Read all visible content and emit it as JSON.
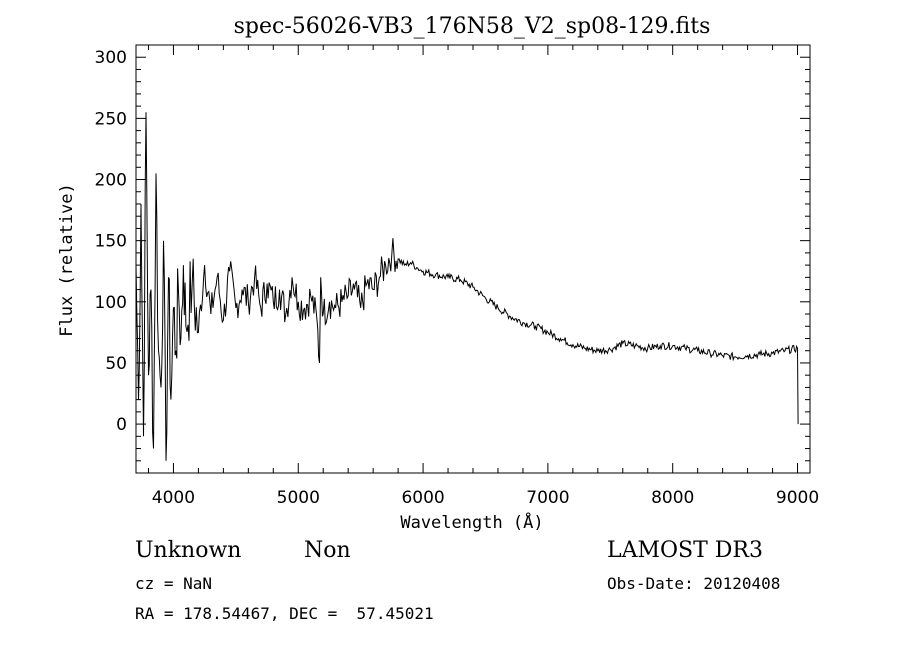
{
  "chart_data": {
    "type": "line",
    "title": "spec-56026-VB3_176N58_V2_sp08-129.fits",
    "xlabel": "Wavelength (Å)",
    "ylabel": "Flux (relative)",
    "xlim": [
      3700,
      9100
    ],
    "ylim": [
      -40,
      310
    ],
    "xticks": [
      "4000",
      "5000",
      "6000",
      "7000",
      "8000",
      "9000"
    ],
    "yticks": [
      "0",
      "50",
      "100",
      "150",
      "200",
      "250",
      "300"
    ],
    "grid": false,
    "series": [
      {
        "x": [
          3700,
          3720,
          3740,
          3760,
          3780,
          3800,
          3820,
          3840,
          3860,
          3880,
          3900,
          3920,
          3940,
          3960,
          3980,
          4000,
          4020,
          4040,
          4060,
          4080,
          4100,
          4150,
          4200,
          4250,
          4300,
          4350,
          4400,
          4450,
          4500,
          4550,
          4600,
          4650,
          4700,
          4750,
          4800,
          4850,
          4900,
          4950,
          5000,
          5050,
          5100,
          5150,
          5170,
          5180,
          5200,
          5250,
          5300,
          5350,
          5400,
          5450,
          5500,
          5550,
          5600,
          5650,
          5700,
          5750,
          5800,
          5850,
          5900,
          5950,
          6000,
          6100,
          6200,
          6300,
          6400,
          6500,
          6600,
          6700,
          6800,
          6900,
          7000,
          7100,
          7200,
          7300,
          7400,
          7500,
          7600,
          7700,
          7800,
          7900,
          8000,
          8100,
          8200,
          8300,
          8400,
          8500,
          8600,
          8700,
          8800,
          8900,
          9000,
          9005
        ],
        "values": [
          130,
          20,
          180,
          -10,
          255,
          40,
          110,
          -20,
          205,
          60,
          30,
          150,
          -30,
          120,
          20,
          95,
          60,
          110,
          70,
          130,
          80,
          115,
          75,
          130,
          90,
          120,
          85,
          125,
          95,
          110,
          100,
          120,
          95,
          115,
          100,
          110,
          90,
          120,
          100,
          95,
          105,
          85,
          50,
          120,
          90,
          100,
          95,
          100,
          105,
          110,
          95,
          115,
          110,
          120,
          130,
          140,
          135,
          130,
          132,
          128,
          125,
          122,
          120,
          118,
          112,
          103,
          95,
          88,
          83,
          80,
          75,
          70,
          65,
          62,
          60,
          61,
          66,
          64,
          62,
          64,
          64,
          62,
          60,
          58,
          56,
          55,
          56,
          57,
          58,
          60,
          62,
          0
        ]
      }
    ]
  },
  "footer": {
    "object_class": "Unknown",
    "subclass": "Non",
    "cz": "cz = NaN",
    "radec": "RA = 178.54467, DEC =  57.45021",
    "survey": "LAMOST DR3",
    "obs_date": "Obs-Date: 20120408"
  }
}
